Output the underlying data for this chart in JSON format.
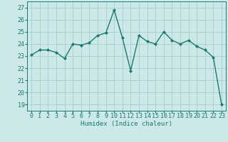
{
  "x": [
    0,
    1,
    2,
    3,
    4,
    5,
    6,
    7,
    8,
    9,
    10,
    11,
    12,
    13,
    14,
    15,
    16,
    17,
    18,
    19,
    20,
    21,
    22,
    23
  ],
  "y": [
    23.1,
    23.5,
    23.5,
    23.3,
    22.8,
    24.0,
    23.9,
    24.1,
    24.7,
    24.9,
    26.8,
    24.5,
    21.8,
    24.7,
    24.2,
    24.0,
    25.0,
    24.3,
    24.0,
    24.3,
    23.8,
    23.5,
    22.9,
    19.0
  ],
  "line_color": "#1a7a6e",
  "marker": "D",
  "marker_size": 2.0,
  "bg_color": "#cce8e8",
  "grid_color": "#aad0d0",
  "xlabel": "Humidex (Indice chaleur)",
  "ylim": [
    18.5,
    27.5
  ],
  "yticks": [
    19,
    20,
    21,
    22,
    23,
    24,
    25,
    26,
    27
  ],
  "xticks": [
    0,
    1,
    2,
    3,
    4,
    5,
    6,
    7,
    8,
    9,
    10,
    11,
    12,
    13,
    14,
    15,
    16,
    17,
    18,
    19,
    20,
    21,
    22,
    23
  ],
  "xlabel_fontsize": 6.5,
  "tick_fontsize": 6.0,
  "line_width": 1.0
}
